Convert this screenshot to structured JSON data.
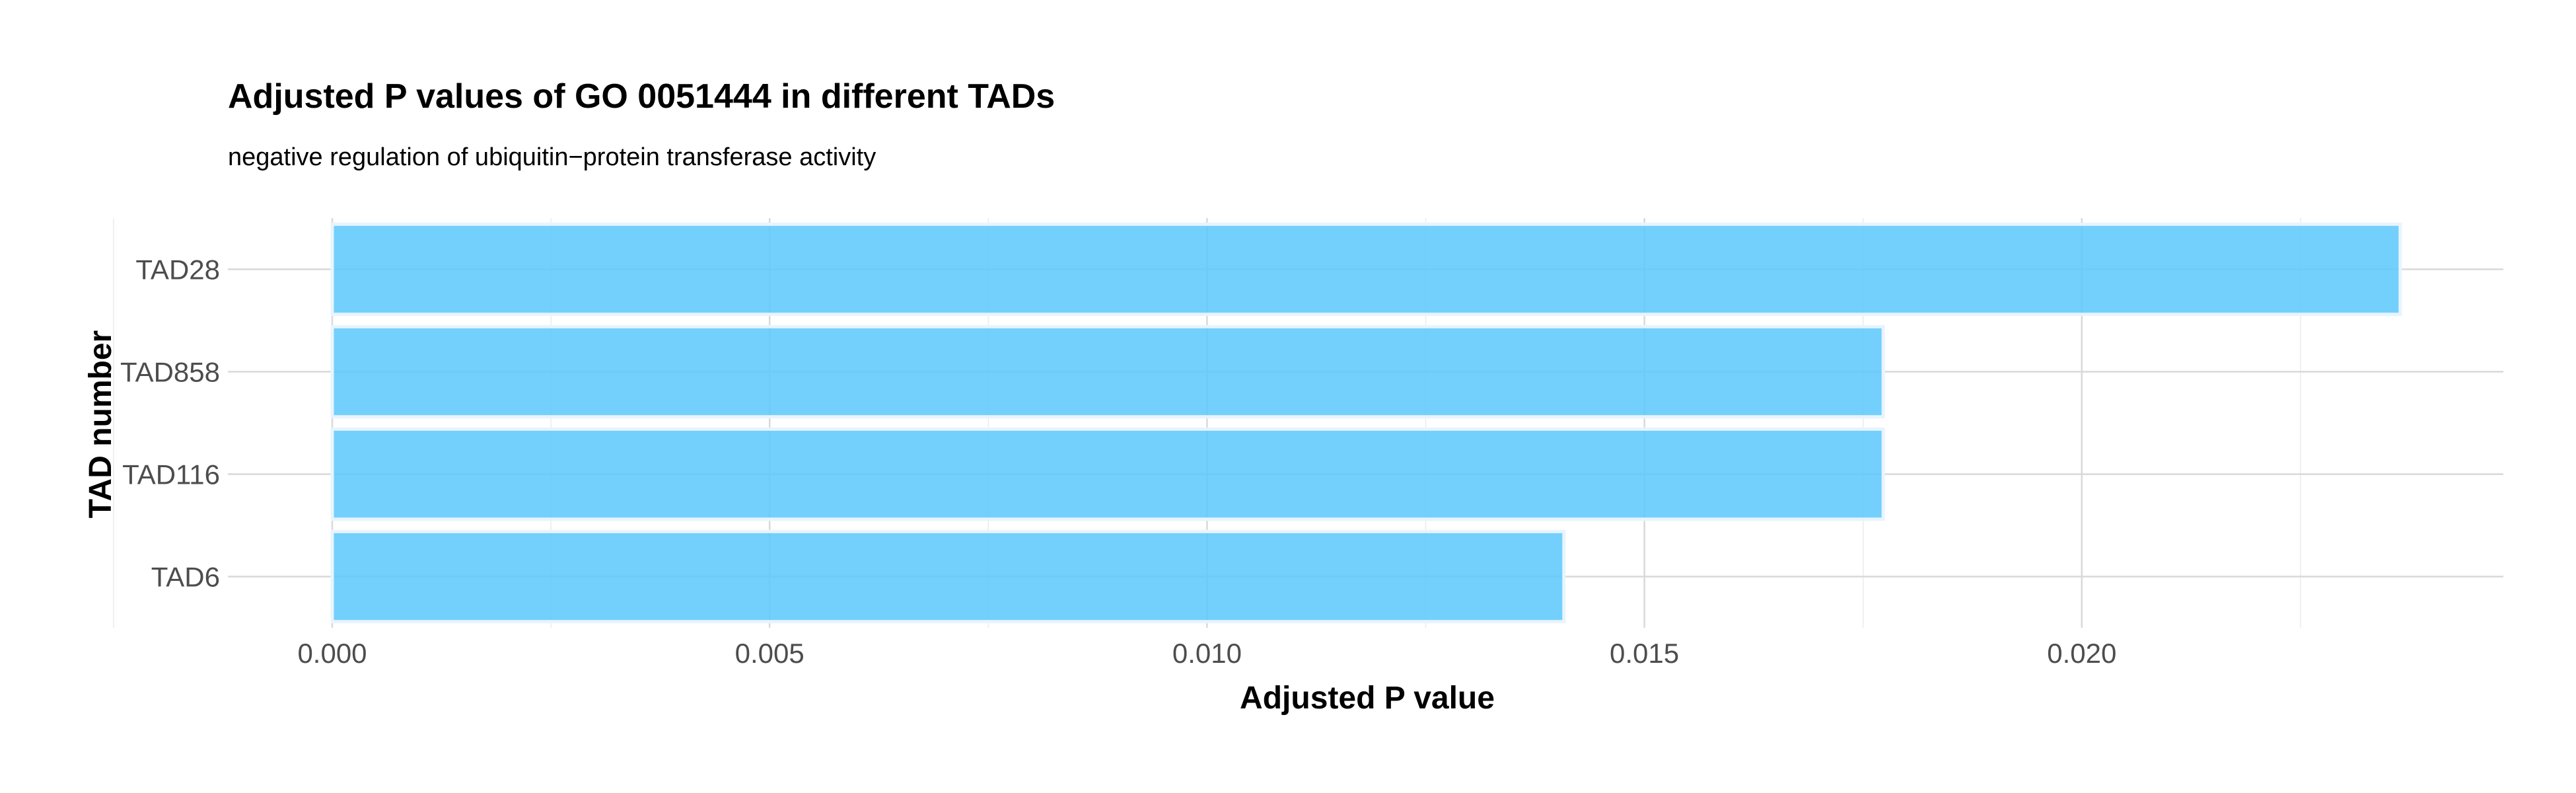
{
  "chart_data": {
    "type": "bar",
    "orientation": "horizontal",
    "title": "Adjusted P values of GO 0051444 in different TADs",
    "subtitle": "negative regulation of ubiquitin−protein transferase activity",
    "xlabel": "Adjusted P value",
    "ylabel": "TAD number",
    "categories": [
      "TAD28",
      "TAD858",
      "TAD116",
      "TAD6"
    ],
    "values": [
      0.02364,
      0.01773,
      0.01773,
      0.01408
    ],
    "xlim": [
      0,
      0.0248
    ],
    "xticks": [
      0.0,
      0.005,
      0.01,
      0.015,
      0.02
    ],
    "xtick_labels": [
      "0.000",
      "0.005",
      "0.010",
      "0.015",
      "0.020"
    ],
    "grid": true,
    "legend": "none",
    "bar_color": "#5BC8FB",
    "grid_color": "#d9d9d9"
  }
}
